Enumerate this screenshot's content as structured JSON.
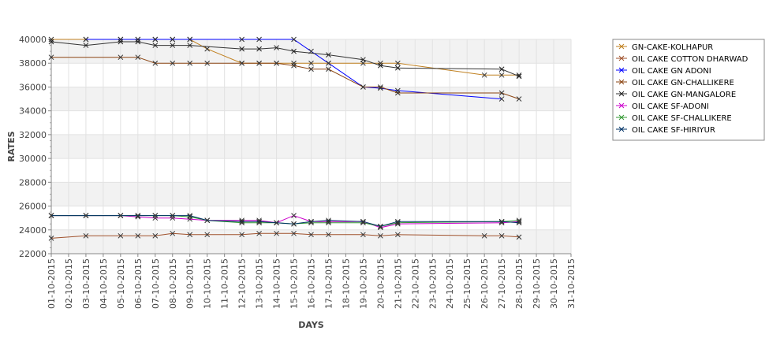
{
  "chart_data": {
    "type": "line",
    "title": "",
    "xlabel": "DAYS",
    "ylabel": "RATES",
    "ylim": [
      22000,
      40000
    ],
    "yticks": [
      22000,
      24000,
      26000,
      28000,
      30000,
      32000,
      34000,
      36000,
      38000,
      40000
    ],
    "categories": [
      "01-10-2015",
      "02-10-2015",
      "03-10-2015",
      "04-10-2015",
      "05-10-2015",
      "06-10-2015",
      "07-10-2015",
      "08-10-2015",
      "09-10-2015",
      "10-10-2015",
      "11-10-2015",
      "12-10-2015",
      "13-10-2015",
      "14-10-2015",
      "15-10-2015",
      "16-10-2015",
      "17-10-2015",
      "18-10-2015",
      "19-10-2015",
      "20-10-2015",
      "21-10-2015",
      "22-10-2015",
      "23-10-2015",
      "24-10-2015",
      "25-10-2015",
      "26-10-2015",
      "27-10-2015",
      "28-10-2015",
      "29-10-2015",
      "30-10-2015",
      "31-10-2015"
    ],
    "grid": true,
    "alternating_bands": true,
    "legend_position": "right",
    "series": [
      {
        "name": "GN-CAKE-KOLHAPUR",
        "color": "#c08020",
        "points": [
          [
            "01-10-2015",
            40000
          ],
          [
            "03-10-2015",
            40000
          ],
          [
            "05-10-2015",
            40000
          ],
          [
            "06-10-2015",
            40000
          ],
          [
            "07-10-2015",
            40000
          ],
          [
            "08-10-2015",
            40000
          ],
          [
            "09-10-2015",
            40000
          ],
          [
            "10-10-2015",
            39200
          ],
          [
            "12-10-2015",
            38000
          ],
          [
            "13-10-2015",
            38000
          ],
          [
            "14-10-2015",
            38000
          ],
          [
            "15-10-2015",
            38000
          ],
          [
            "16-10-2015",
            38000
          ],
          [
            "17-10-2015",
            38000
          ],
          [
            "19-10-2015",
            38000
          ],
          [
            "20-10-2015",
            38000
          ],
          [
            "21-10-2015",
            38000
          ],
          [
            "26-10-2015",
            37000
          ],
          [
            "27-10-2015",
            37000
          ],
          [
            "28-10-2015",
            37000
          ]
        ]
      },
      {
        "name": "OIL CAKE COTTON DHARWAD",
        "color": "#a0522d",
        "points": [
          [
            "01-10-2015",
            23300
          ],
          [
            "03-10-2015",
            23500
          ],
          [
            "05-10-2015",
            23500
          ],
          [
            "06-10-2015",
            23500
          ],
          [
            "07-10-2015",
            23500
          ],
          [
            "08-10-2015",
            23700
          ],
          [
            "09-10-2015",
            23600
          ],
          [
            "10-10-2015",
            23600
          ],
          [
            "12-10-2015",
            23600
          ],
          [
            "13-10-2015",
            23700
          ],
          [
            "14-10-2015",
            23700
          ],
          [
            "15-10-2015",
            23700
          ],
          [
            "16-10-2015",
            23600
          ],
          [
            "17-10-2015",
            23600
          ],
          [
            "19-10-2015",
            23600
          ],
          [
            "20-10-2015",
            23500
          ],
          [
            "21-10-2015",
            23600
          ],
          [
            "26-10-2015",
            23500
          ],
          [
            "27-10-2015",
            23500
          ],
          [
            "28-10-2015",
            23400
          ]
        ]
      },
      {
        "name": "OIL CAKE GN ADONI",
        "color": "#0000ff",
        "points": [
          [
            "03-10-2015",
            40000
          ],
          [
            "05-10-2015",
            40000
          ],
          [
            "06-10-2015",
            40000
          ],
          [
            "07-10-2015",
            40000
          ],
          [
            "08-10-2015",
            40000
          ],
          [
            "09-10-2015",
            40000
          ],
          [
            "12-10-2015",
            40000
          ],
          [
            "13-10-2015",
            40000
          ],
          [
            "15-10-2015",
            40000
          ],
          [
            "16-10-2015",
            39000
          ],
          [
            "17-10-2015",
            38000
          ],
          [
            "19-10-2015",
            36000
          ],
          [
            "20-10-2015",
            35900
          ],
          [
            "21-10-2015",
            35700
          ],
          [
            "27-10-2015",
            35000
          ]
        ]
      },
      {
        "name": "OIL CAKE GN-CHALLIKERE",
        "color": "#8b4513",
        "points": [
          [
            "01-10-2015",
            38500
          ],
          [
            "05-10-2015",
            38500
          ],
          [
            "06-10-2015",
            38500
          ],
          [
            "07-10-2015",
            38000
          ],
          [
            "08-10-2015",
            38000
          ],
          [
            "09-10-2015",
            38000
          ],
          [
            "10-10-2015",
            38000
          ],
          [
            "12-10-2015",
            38000
          ],
          [
            "13-10-2015",
            38000
          ],
          [
            "14-10-2015",
            38000
          ],
          [
            "15-10-2015",
            37800
          ],
          [
            "16-10-2015",
            37500
          ],
          [
            "17-10-2015",
            37500
          ],
          [
            "19-10-2015",
            36000
          ],
          [
            "20-10-2015",
            36000
          ],
          [
            "21-10-2015",
            35500
          ],
          [
            "27-10-2015",
            35500
          ],
          [
            "28-10-2015",
            35000
          ]
        ]
      },
      {
        "name": "OIL CAKE GN-MANGALORE",
        "color": "#333333",
        "points": [
          [
            "01-10-2015",
            39800
          ],
          [
            "03-10-2015",
            39500
          ],
          [
            "05-10-2015",
            39800
          ],
          [
            "06-10-2015",
            39800
          ],
          [
            "07-10-2015",
            39500
          ],
          [
            "08-10-2015",
            39500
          ],
          [
            "09-10-2015",
            39500
          ],
          [
            "12-10-2015",
            39200
          ],
          [
            "13-10-2015",
            39200
          ],
          [
            "14-10-2015",
            39300
          ],
          [
            "15-10-2015",
            39000
          ],
          [
            "17-10-2015",
            38700
          ],
          [
            "19-10-2015",
            38300
          ],
          [
            "20-10-2015",
            37800
          ],
          [
            "21-10-2015",
            37600
          ],
          [
            "27-10-2015",
            37500
          ],
          [
            "28-10-2015",
            36900
          ]
        ]
      },
      {
        "name": "OIL CAKE SF-ADONI",
        "color": "#cc00cc",
        "points": [
          [
            "01-10-2015",
            25200
          ],
          [
            "03-10-2015",
            25200
          ],
          [
            "05-10-2015",
            25200
          ],
          [
            "06-10-2015",
            25100
          ],
          [
            "07-10-2015",
            25000
          ],
          [
            "08-10-2015",
            25000
          ],
          [
            "09-10-2015",
            24900
          ],
          [
            "10-10-2015",
            24800
          ],
          [
            "12-10-2015",
            24800
          ],
          [
            "13-10-2015",
            24800
          ],
          [
            "14-10-2015",
            24600
          ],
          [
            "15-10-2015",
            25200
          ],
          [
            "16-10-2015",
            24700
          ],
          [
            "17-10-2015",
            24700
          ],
          [
            "19-10-2015",
            24700
          ],
          [
            "20-10-2015",
            24200
          ],
          [
            "21-10-2015",
            24500
          ],
          [
            "27-10-2015",
            24600
          ],
          [
            "28-10-2015",
            24700
          ]
        ]
      },
      {
        "name": "OIL CAKE SF-CHALLIKERE",
        "color": "#339933",
        "points": [
          [
            "01-10-2015",
            25200
          ],
          [
            "03-10-2015",
            25200
          ],
          [
            "05-10-2015",
            25200
          ],
          [
            "06-10-2015",
            25200
          ],
          [
            "07-10-2015",
            25200
          ],
          [
            "08-10-2015",
            25200
          ],
          [
            "09-10-2015",
            25100
          ],
          [
            "10-10-2015",
            24800
          ],
          [
            "12-10-2015",
            24600
          ],
          [
            "13-10-2015",
            24600
          ],
          [
            "14-10-2015",
            24600
          ],
          [
            "15-10-2015",
            24500
          ],
          [
            "16-10-2015",
            24600
          ],
          [
            "17-10-2015",
            24600
          ],
          [
            "19-10-2015",
            24600
          ],
          [
            "20-10-2015",
            24300
          ],
          [
            "21-10-2015",
            24600
          ],
          [
            "27-10-2015",
            24700
          ],
          [
            "28-10-2015",
            24800
          ]
        ]
      },
      {
        "name": "OIL CAKE SF-HIRIYUR",
        "color": "#003366",
        "points": [
          [
            "01-10-2015",
            25200
          ],
          [
            "03-10-2015",
            25200
          ],
          [
            "05-10-2015",
            25200
          ],
          [
            "06-10-2015",
            25200
          ],
          [
            "07-10-2015",
            25200
          ],
          [
            "08-10-2015",
            25200
          ],
          [
            "09-10-2015",
            25200
          ],
          [
            "10-10-2015",
            24800
          ],
          [
            "12-10-2015",
            24700
          ],
          [
            "13-10-2015",
            24700
          ],
          [
            "14-10-2015",
            24600
          ],
          [
            "15-10-2015",
            24500
          ],
          [
            "16-10-2015",
            24700
          ],
          [
            "17-10-2015",
            24800
          ],
          [
            "19-10-2015",
            24700
          ],
          [
            "20-10-2015",
            24300
          ],
          [
            "21-10-2015",
            24700
          ],
          [
            "27-10-2015",
            24700
          ],
          [
            "28-10-2015",
            24600
          ]
        ]
      }
    ]
  }
}
